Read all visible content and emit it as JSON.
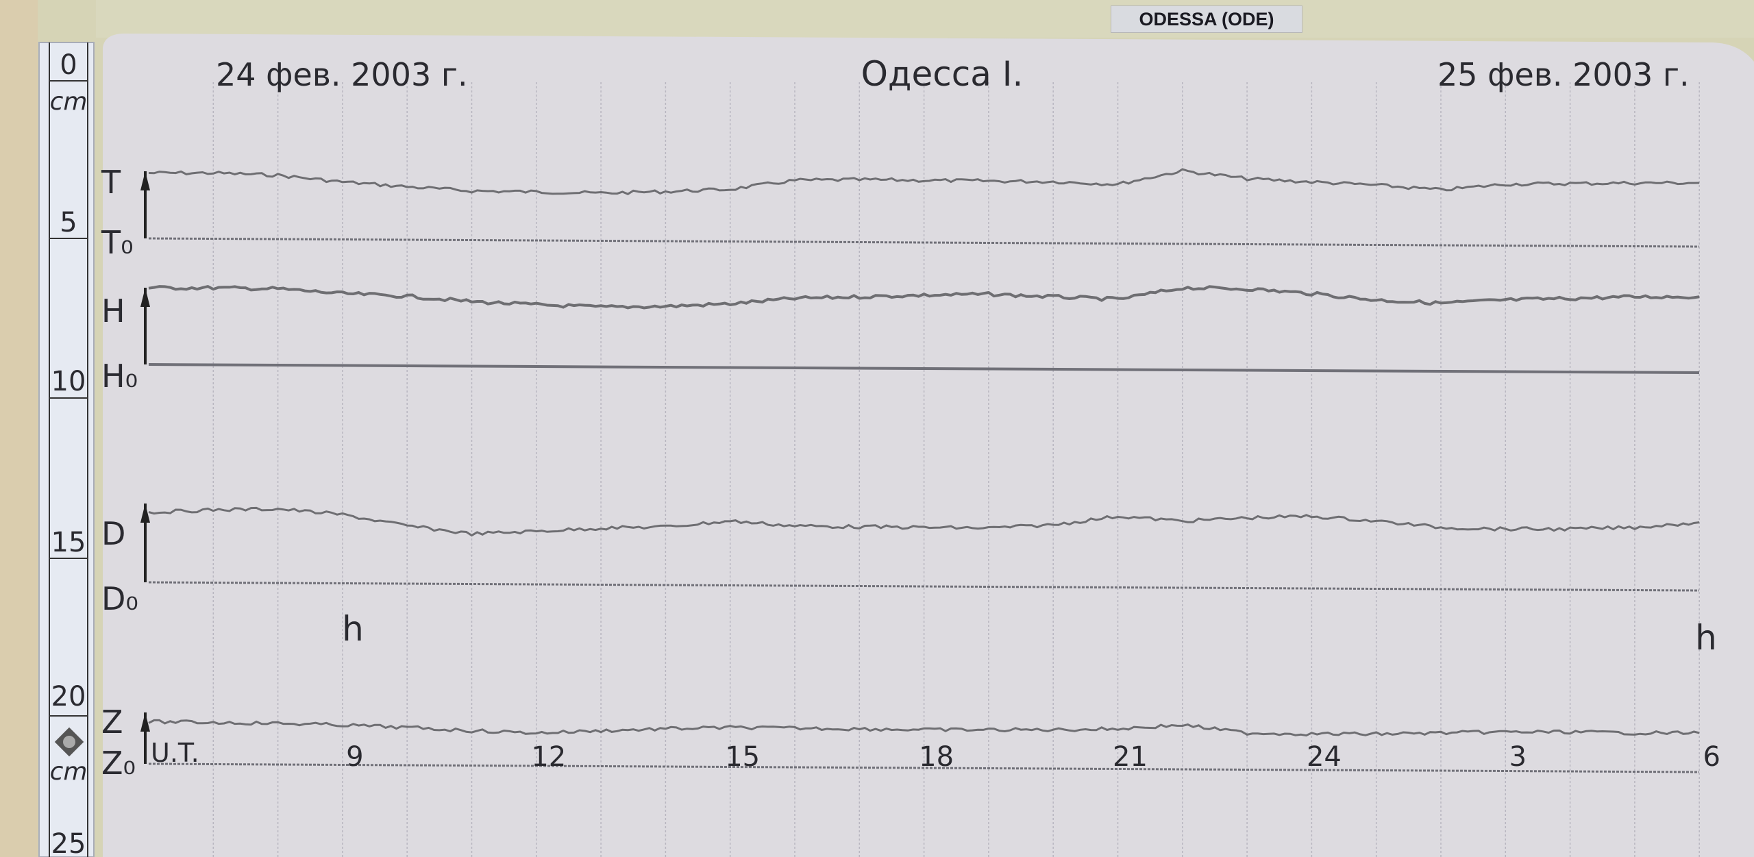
{
  "station_plate": "ODESSA (ODE)",
  "chart_data": {
    "type": "line",
    "title": "Одесса I.",
    "date_left": "24 фев. 2003 г.",
    "date_right": "25 фев. 2003 г.",
    "time_label": "U.T.",
    "hour_marker": "h",
    "x_ticks": [
      {
        "hour": 9,
        "label": "9"
      },
      {
        "hour": 12,
        "label": "12"
      },
      {
        "hour": 15,
        "label": "15"
      },
      {
        "hour": 18,
        "label": "18"
      },
      {
        "hour": 21,
        "label": "21"
      },
      {
        "hour": 24,
        "label": "24"
      },
      {
        "hour": 27,
        "label": "3"
      },
      {
        "hour": 30,
        "label": "6"
      }
    ],
    "x": [
      6,
      7,
      8,
      9,
      10,
      11,
      12,
      13,
      14,
      15,
      16,
      17,
      18,
      19,
      20,
      21,
      22,
      23,
      24,
      25,
      26,
      27,
      28,
      29,
      30
    ],
    "xlim": [
      6,
      30
    ],
    "unit": "cm",
    "grid": true,
    "series": [
      {
        "name": "T",
        "baseline_label": "T₀",
        "values": [
          2.13,
          2.13,
          2.06,
          1.85,
          1.7,
          1.57,
          1.54,
          1.5,
          1.55,
          1.62,
          1.9,
          1.92,
          1.9,
          1.88,
          1.86,
          1.78,
          2.2,
          1.95,
          1.85,
          1.75,
          1.6,
          1.78,
          1.8,
          1.82,
          1.82
        ]
      },
      {
        "name": "H",
        "baseline_label": "H₀",
        "values": [
          2.48,
          2.48,
          2.45,
          2.3,
          2.22,
          2.05,
          1.95,
          1.88,
          1.9,
          1.98,
          2.15,
          2.2,
          2.25,
          2.28,
          2.2,
          2.12,
          2.48,
          2.45,
          2.3,
          2.1,
          2.0,
          2.1,
          2.15,
          2.2,
          2.2
        ]
      },
      {
        "name": "D",
        "baseline_label": "D₀",
        "values": [
          2.27,
          2.35,
          2.38,
          2.2,
          1.85,
          1.6,
          1.68,
          1.78,
          1.82,
          2.0,
          1.85,
          1.82,
          1.8,
          1.78,
          1.88,
          2.15,
          2.0,
          2.1,
          2.15,
          2.0,
          1.8,
          1.75,
          1.75,
          1.8,
          1.96
        ]
      },
      {
        "name": "Z",
        "baseline_label": "Z₀",
        "values": [
          1.4,
          1.38,
          1.35,
          1.3,
          1.22,
          1.12,
          1.05,
          1.12,
          1.18,
          1.22,
          1.2,
          1.18,
          1.15,
          1.15,
          1.15,
          1.18,
          1.3,
          1.05,
          1.02,
          1.02,
          1.05,
          1.08,
          1.08,
          1.05,
          1.05
        ]
      }
    ],
    "ruler": {
      "unit": "cm",
      "ticks": [
        "0",
        "5",
        "10",
        "15",
        "20",
        "25"
      ]
    }
  },
  "colors": {
    "paper": "#dddbe0",
    "trace": "#6e6e72",
    "ink": "#2a2a30",
    "wall": "#d6d4b6",
    "ruler": "#e6eaf2"
  }
}
